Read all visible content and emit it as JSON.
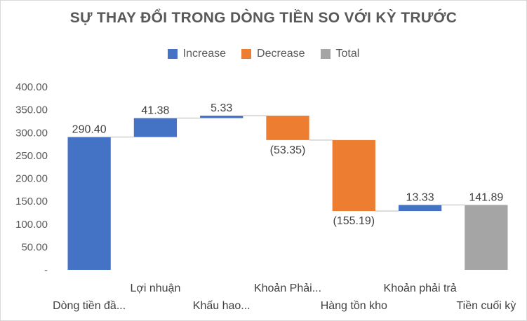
{
  "chart_data": {
    "type": "waterfall",
    "title": "SỰ THAY ĐỔI TRONG DÒNG TIỀN SO VỚI KỲ TRƯỚC",
    "legend": [
      {
        "label": "Increase",
        "color": "#4472c4"
      },
      {
        "label": "Decrease",
        "color": "#ed7d31"
      },
      {
        "label": "Total",
        "color": "#a5a5a5"
      }
    ],
    "legend_position": "top",
    "categories": [
      "Dòng tiền đầ...",
      "Lợi nhuận",
      "Khấu hao...",
      "Khoản Phải...",
      "Hàng tồn kho",
      "Khoản phải trả",
      "Tiền cuối kỳ"
    ],
    "values": [
      290.4,
      41.38,
      5.33,
      -53.35,
      -155.19,
      13.33,
      141.89
    ],
    "value_labels": [
      "290.40",
      "41.38",
      "5.33",
      "(53.35)",
      "(155.19)",
      "13.33",
      "141.89"
    ],
    "kinds": [
      "increase",
      "increase",
      "increase",
      "decrease",
      "decrease",
      "increase",
      "total"
    ],
    "ylim": [
      0,
      400
    ],
    "yticks": [
      0,
      50,
      100,
      150,
      200,
      250,
      300,
      350,
      400
    ],
    "ytick_labels": [
      "-",
      "50.00",
      "100.00",
      "150.00",
      "200.00",
      "250.00",
      "300.00",
      "350.00",
      "400.00"
    ],
    "grid": false,
    "connector_lines": true
  }
}
